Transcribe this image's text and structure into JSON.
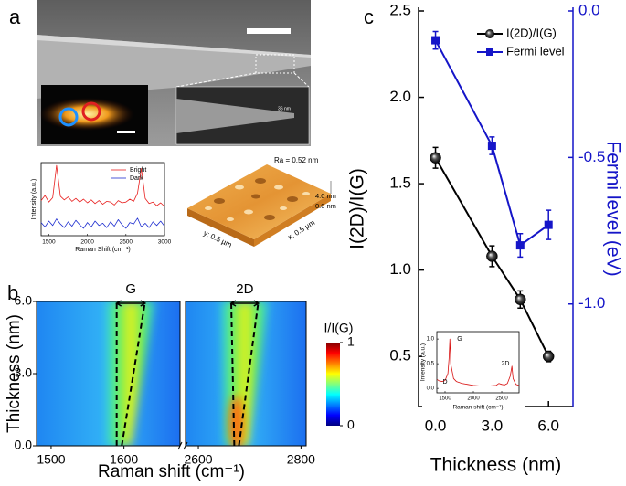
{
  "panel_labels": [
    "a",
    "b",
    "c"
  ],
  "panel_a": {
    "zoom_scale_label": "36 nm",
    "afm_roughness": "Ra = 0.52 nm",
    "afm_z_labels": [
      "4.0 nm",
      "0.0 nm"
    ],
    "afm_x_label": "x: 0.5 µm",
    "afm_y_label": "y: 0.5 µm"
  },
  "chart_data": [
    {
      "type": "line",
      "x_label": "Raman Shift (cm⁻¹)",
      "y_label": "Intensity (a.u.)",
      "xlim": [
        1400,
        3000
      ],
      "xticks": [
        1500,
        2000,
        2500,
        3000
      ],
      "ylim": [
        0,
        10
      ],
      "x": [
        1400,
        1450,
        1500,
        1550,
        1600,
        1650,
        1700,
        1750,
        1800,
        1850,
        1900,
        1950,
        2000,
        2050,
        2100,
        2150,
        2200,
        2250,
        2300,
        2350,
        2400,
        2450,
        2500,
        2550,
        2600,
        2650,
        2700,
        2750,
        2800,
        2850,
        2900,
        2950,
        3000
      ],
      "series": [
        {
          "name": "Bright",
          "color": "#e8201f",
          "values": [
            4.8,
            5.5,
            4.6,
            5.2,
            9.6,
            5.4,
            4.9,
            5.3,
            4.7,
            5.1,
            4.6,
            5.0,
            4.5,
            4.9,
            4.4,
            4.8,
            4.3,
            4.7,
            4.6,
            4.2,
            4.8,
            4.5,
            4.6,
            5.0,
            4.7,
            5.8,
            9.2,
            5.1,
            4.4,
            4.6,
            4.1,
            4.5,
            4.0
          ]
        },
        {
          "name": "Dark",
          "color": "#1f2fd0",
          "values": [
            1.8,
            1.2,
            2.0,
            1.4,
            2.3,
            1.6,
            1.1,
            1.9,
            1.3,
            2.1,
            1.5,
            1.0,
            1.8,
            1.2,
            2.0,
            1.4,
            1.7,
            1.1,
            1.9,
            1.3,
            2.2,
            1.5,
            1.0,
            1.8,
            1.6,
            2.4,
            1.2,
            1.7,
            1.1,
            1.9,
            1.4,
            2.0,
            1.3
          ]
        }
      ],
      "legend": "upper right"
    },
    {
      "type": "heatmap",
      "x_label": "Raman shift (cm⁻¹)",
      "y_label": "Thickness (nm)",
      "ylim": [
        0,
        6
      ],
      "yticks": [
        {
          "value": 0,
          "label": "0.0"
        },
        {
          "value": 3,
          "label": "3.0"
        },
        {
          "value": 6,
          "label": "6.0"
        }
      ],
      "panels": [
        {
          "title": "G",
          "xlim": [
            1480,
            1677
          ],
          "xticks": [
            1500,
            1600
          ],
          "peak_lines": [
            {
              "x": [
                1590,
                1590
              ],
              "y": [
                0,
                6
              ]
            },
            {
              "x": [
                1597,
                1629
              ],
              "y": [
                0,
                6
              ]
            }
          ]
        },
        {
          "title": "2D",
          "xlim": [
            2575,
            2810
          ],
          "xticks": [
            2600,
            2800
          ],
          "peak_lines": [
            {
              "x": [
                2670,
                2664
              ],
              "y": [
                0,
                6
              ]
            },
            {
              "x": [
                2679,
                2717
              ],
              "y": [
                0,
                6
              ]
            }
          ]
        }
      ],
      "colorbar_label": "I/I(G)",
      "colorbar_lim": [
        0,
        1
      ],
      "colorbar_ticks": [
        0,
        1
      ]
    },
    {
      "type": "line",
      "x_label": "Thickness (nm)",
      "y_label": "I(2D)/I(G)",
      "y2_label": "Fermi level (eV)",
      "xlim": [
        -0.9,
        7.3
      ],
      "xticks": [
        {
          "value": 0,
          "label": "0.0"
        },
        {
          "value": 3,
          "label": "3.0"
        },
        {
          "value": 6,
          "label": "6.0"
        }
      ],
      "ylim": [
        0.21,
        2.5
      ],
      "yticks": [
        0.5,
        {
          "value": 1,
          "label": "1.0"
        },
        1.5,
        {
          "value": 2,
          "label": "2.0"
        },
        2.5
      ],
      "y2lim": [
        -1.35,
        0
      ],
      "y2ticks": [
        {
          "value": 0,
          "label": "0.0"
        },
        {
          "value": -0.5,
          "label": "-0.5"
        },
        {
          "value": -1,
          "label": "-1.0"
        }
      ],
      "x": [
        0,
        3,
        4.5,
        6
      ],
      "series": [
        {
          "name": "I(2D)/I(G)",
          "color": "#000000",
          "marker": "circle",
          "values": [
            1.65,
            1.08,
            0.83,
            0.5
          ],
          "errors": [
            0.06,
            0.06,
            0.05,
            0.03
          ]
        },
        {
          "name": "Fermi level",
          "color": "#1515c8",
          "marker": "square",
          "axis": "y2",
          "values": [
            -0.1,
            -0.46,
            -0.8,
            -0.73
          ],
          "errors": [
            0.03,
            0.03,
            0.04,
            0.05
          ]
        }
      ],
      "legend": "upper right"
    },
    {
      "type": "line",
      "x_label": "Raman shift (cm⁻¹)",
      "y_label": "Intensity (a.u.)",
      "xlim": [
        1355,
        2806
      ],
      "xticks": [
        1500,
        2000,
        2500
      ],
      "ylim": [
        -0.09,
        1.15
      ],
      "yticks": [
        {
          "value": 0,
          "label": "0.0"
        },
        0.5,
        {
          "value": 1,
          "label": "1.0"
        }
      ],
      "x": [
        1360,
        1400,
        1450,
        1500,
        1550,
        1570,
        1585,
        1600,
        1650,
        1700,
        1800,
        1900,
        2000,
        2100,
        2200,
        2300,
        2400,
        2450,
        2500,
        2550,
        2600,
        2650,
        2680,
        2700,
        2750,
        2800
      ],
      "series": [
        {
          "color": "#d81010",
          "values": [
            0.18,
            0.15,
            0.14,
            0.16,
            0.3,
            0.6,
            1.0,
            0.5,
            0.2,
            0.14,
            0.1,
            0.08,
            0.06,
            0.05,
            0.05,
            0.05,
            0.06,
            0.1,
            0.08,
            0.07,
            0.1,
            0.25,
            0.45,
            0.2,
            0.08,
            0.06
          ]
        }
      ],
      "annotations": [
        "D",
        "G",
        "2D"
      ]
    }
  ]
}
